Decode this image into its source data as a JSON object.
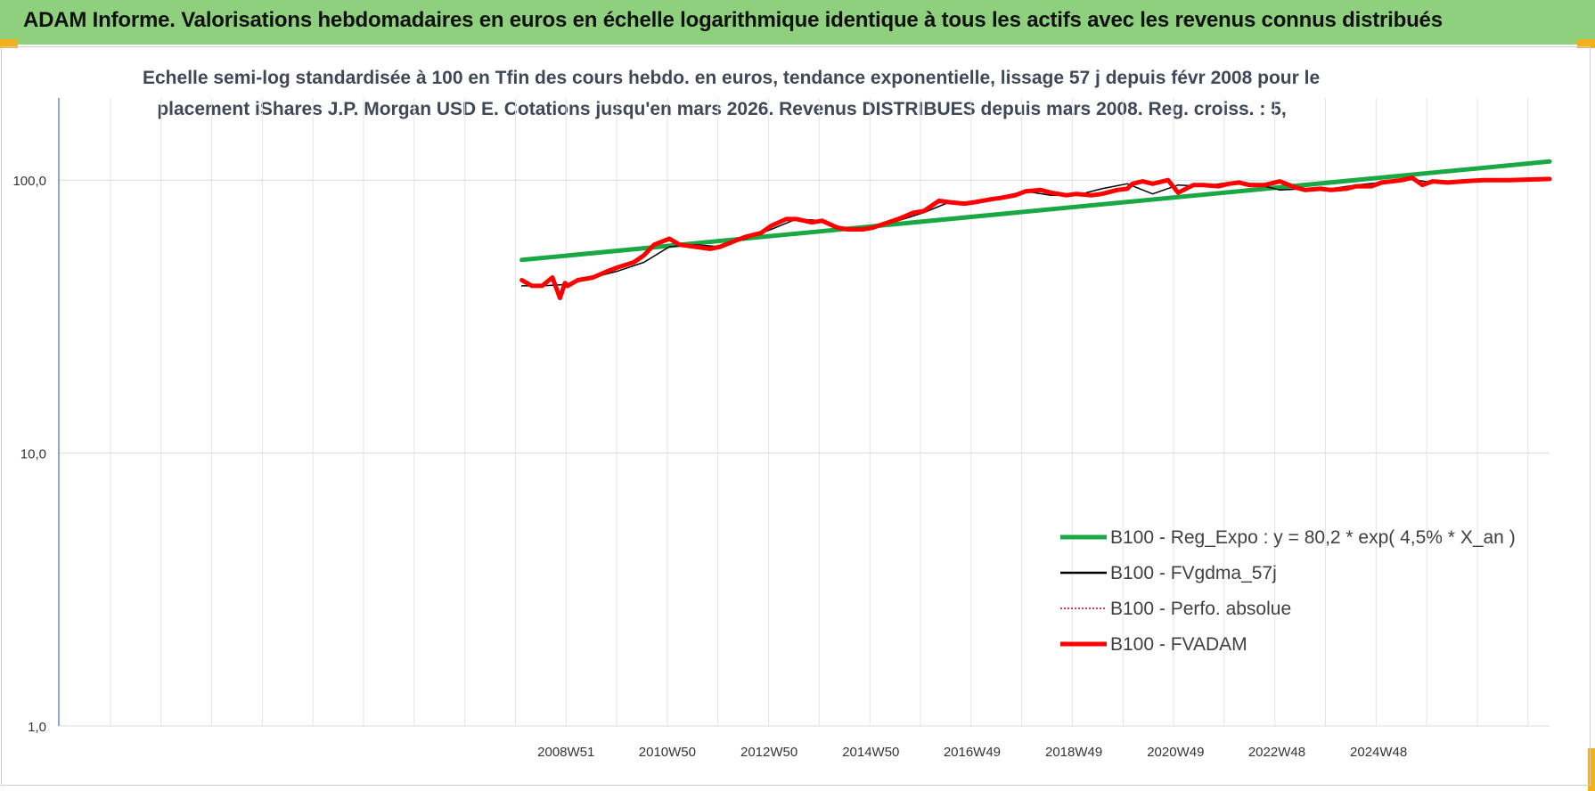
{
  "banner": {
    "title": "ADAM Informe. Valorisations hebdomadaires en euros en échelle logarithmique identique à tous les actifs avec les revenus connus distribués"
  },
  "chart_data": {
    "type": "line",
    "title_line1": "Echelle semi-log standardisée à 100 en Tfin des cours hebdo. en euros, tendance exponentielle, lissage 57 j depuis févr 2008 pour le",
    "title_line2": "placement iShares J.P. Morgan USD E. Cotations jusqu'en mars 2026. Revenus DISTRIBUES depuis mars 2008. Reg. croiss. : 5,",
    "y_scale": "log",
    "ylim": [
      1,
      200
    ],
    "y_ticks": [
      1,
      10,
      100
    ],
    "y_tick_labels": [
      "1,0",
      "10,0",
      "100,0"
    ],
    "xlim": [
      1999.0,
      2028.3
    ],
    "x_ticks": [
      2008.97,
      2010.96,
      2012.96,
      2014.96,
      2016.95,
      2018.95,
      2020.95,
      2022.94,
      2024.94
    ],
    "x_tick_labels": [
      "2008W51",
      "2010W50",
      "2012W50",
      "2014W50",
      "2016W49",
      "2018W49",
      "2020W49",
      "2022W48",
      "2024W48"
    ],
    "grid": true,
    "legend_position": "lower-right",
    "series": [
      {
        "name": "B100 - Reg_Expo : y = 80,2 * exp( 4,5% *  X_an )",
        "color": "#1aa845",
        "style": "thick",
        "x": [
          2008.1,
          2028.3
        ],
        "y": [
          51,
          117
        ]
      },
      {
        "name": "B100 - FVgdma_57j",
        "color": "#000000",
        "style": "thin",
        "x": [
          2008.1,
          2008.5,
          2009.0,
          2009.5,
          2010.0,
          2010.5,
          2011.0,
          2011.5,
          2012.0,
          2012.5,
          2013.0,
          2013.5,
          2014.0,
          2014.5,
          2015.0,
          2015.5,
          2016.0,
          2016.5,
          2017.0,
          2017.5,
          2018.0,
          2018.5,
          2019.0,
          2019.5,
          2020.0,
          2020.5,
          2021.0,
          2021.5,
          2022.0,
          2022.5,
          2023.0,
          2023.5,
          2024.0,
          2024.5,
          2025.0,
          2025.5,
          2026.0,
          2026.5,
          2027.0,
          2027.5,
          2028.3
        ],
        "y": [
          41,
          41,
          41.5,
          44,
          46.5,
          50,
          57,
          58,
          57,
          61,
          66,
          72,
          71,
          66,
          67,
          71,
          76,
          83,
          82,
          87,
          91,
          88,
          88,
          93,
          97,
          89,
          96,
          95,
          98,
          97,
          92,
          93,
          93,
          96,
          98,
          101,
          98,
          98,
          100,
          100,
          100
        ]
      },
      {
        "name": "B100 - Perfo. absolue",
        "color": "#c00000",
        "style": "dotted",
        "x": [],
        "y": []
      },
      {
        "name": "B100 - FVADAM",
        "color": "#ff0000",
        "style": "thick",
        "x": [
          2008.1,
          2008.3,
          2008.5,
          2008.7,
          2008.85,
          2008.95,
          2009.0,
          2009.2,
          2009.5,
          2009.8,
          2010.0,
          2010.3,
          2010.5,
          2010.7,
          2011.0,
          2011.2,
          2011.5,
          2011.8,
          2012.0,
          2012.3,
          2012.5,
          2012.8,
          2013.0,
          2013.3,
          2013.5,
          2013.8,
          2014.0,
          2014.3,
          2014.5,
          2014.8,
          2015.0,
          2015.3,
          2015.5,
          2015.8,
          2016.0,
          2016.3,
          2016.5,
          2016.8,
          2017.0,
          2017.3,
          2017.5,
          2017.8,
          2018.0,
          2018.3,
          2018.5,
          2018.8,
          2019.0,
          2019.3,
          2019.5,
          2019.8,
          2020.0,
          2020.1,
          2020.2,
          2020.3,
          2020.5,
          2020.8,
          2021.0,
          2021.3,
          2021.5,
          2021.8,
          2022.0,
          2022.2,
          2022.4,
          2022.7,
          2023.0,
          2023.3,
          2023.5,
          2023.8,
          2024.0,
          2024.3,
          2024.5,
          2024.8,
          2025.0,
          2025.2,
          2025.4,
          2025.6,
          2025.8,
          2026.0,
          2026.3,
          2026.6,
          2027.0,
          2027.5,
          2028.3
        ],
        "y": [
          43,
          41,
          41,
          44,
          37,
          42,
          41,
          43,
          44,
          46.5,
          48,
          50,
          53,
          58,
          61,
          58,
          57,
          56,
          57,
          60,
          62,
          64,
          68,
          72,
          72,
          70,
          71,
          67,
          66,
          66,
          67,
          70,
          72,
          76,
          77,
          84,
          83,
          82,
          83,
          85,
          86,
          88,
          91,
          92,
          90,
          88,
          89,
          88,
          89,
          92,
          93,
          97,
          98,
          99,
          97,
          100,
          90,
          96,
          96,
          95,
          97,
          98,
          96,
          96,
          99,
          94,
          92,
          93,
          92,
          93,
          95,
          95,
          98,
          99,
          100,
          102,
          96,
          99,
          98,
          99,
          100,
          100,
          101
        ]
      }
    ]
  }
}
